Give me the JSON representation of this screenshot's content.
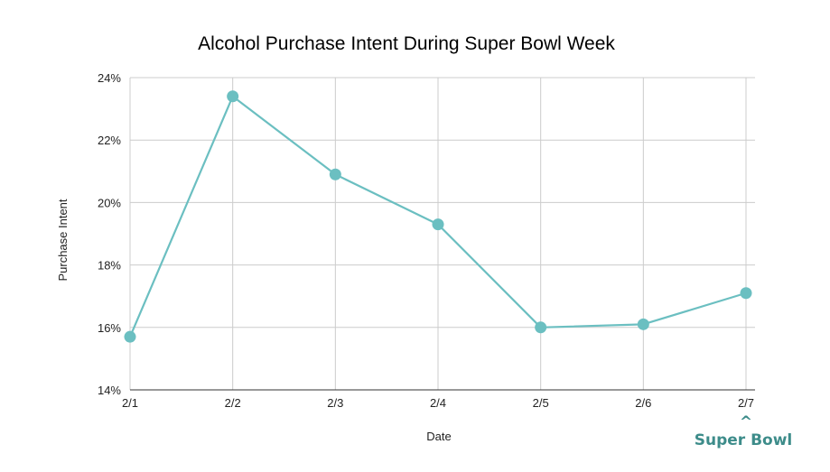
{
  "chart_data": {
    "type": "line",
    "title": "Alcohol Purchase Intent During Super Bowl Week",
    "xlabel": "Date",
    "ylabel": "Purchase Intent",
    "categories": [
      "2/1",
      "2/2",
      "2/3",
      "2/4",
      "2/5",
      "2/6",
      "2/7"
    ],
    "series": [
      {
        "values": [
          15.7,
          23.4,
          20.9,
          19.3,
          16.0,
          16.1,
          17.1
        ]
      }
    ],
    "ylim": [
      14,
      24
    ],
    "yticks": [
      "14%",
      "16%",
      "18%",
      "20%",
      "22%",
      "24%"
    ],
    "ytick_values": [
      14,
      16,
      18,
      20,
      22,
      24
    ],
    "grid": true,
    "line_color": "#6bbfc1"
  },
  "logo": {
    "caret": "^",
    "text": "Super Bowl",
    "color": "#3d8c8a"
  }
}
